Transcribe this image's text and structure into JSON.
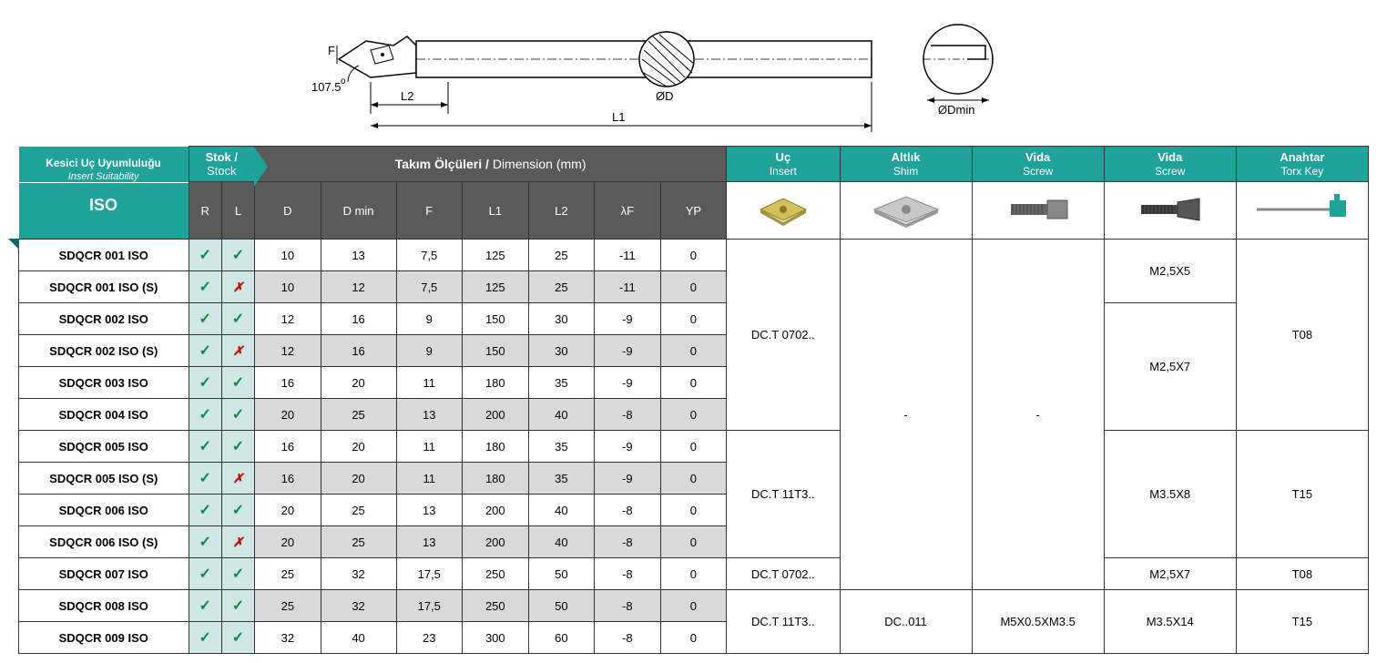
{
  "diagram": {
    "angle_label": "107.5",
    "degree": "o",
    "F": "F",
    "L2": "L2",
    "L1": "L1",
    "D": "ØD",
    "Dmin": "ØDmin"
  },
  "headers": {
    "iso_title": "Kesici Uç Uyumluluğu",
    "iso_sub": "Insert Suitability",
    "iso_label": "ISO",
    "stock": "Stok / ",
    "stock_en": "Stock",
    "dim": "Takım Ölçüleri / ",
    "dim_en": "Dimension (mm)",
    "R": "R",
    "L": "L",
    "D": "D",
    "Dmin": "D min",
    "F": "F",
    "L1": "L1",
    "L2": "L2",
    "lF": "λF",
    "YP": "YP",
    "insert": "Uç",
    "insert_en": "Insert",
    "shim": "Altlık",
    "shim_en": "Shim",
    "screw1": "Vida",
    "screw1_en": "Screw",
    "screw2": "Vida",
    "screw2_en": "Screw",
    "key": "Anahtar",
    "key_en": "Torx Key"
  },
  "rows": [
    {
      "iso": "SDQCR 001 ISO",
      "r": "✓",
      "l": "✓",
      "d": "10",
      "dmin": "13",
      "f": "7,5",
      "l1": "125",
      "l2": "25",
      "lf": "-11",
      "yp": "0",
      "alt": false
    },
    {
      "iso": "SDQCR 001 ISO (S)",
      "r": "✓",
      "l": "✗",
      "d": "10",
      "dmin": "12",
      "f": "7,5",
      "l1": "125",
      "l2": "25",
      "lf": "-11",
      "yp": "0",
      "alt": true
    },
    {
      "iso": "SDQCR 002 ISO",
      "r": "✓",
      "l": "✓",
      "d": "12",
      "dmin": "16",
      "f": "9",
      "l1": "150",
      "l2": "30",
      "lf": "-9",
      "yp": "0",
      "alt": false
    },
    {
      "iso": "SDQCR 002 ISO (S)",
      "r": "✓",
      "l": "✗",
      "d": "12",
      "dmin": "16",
      "f": "9",
      "l1": "150",
      "l2": "30",
      "lf": "-9",
      "yp": "0",
      "alt": true
    },
    {
      "iso": "SDQCR 003 ISO",
      "r": "✓",
      "l": "✓",
      "d": "16",
      "dmin": "20",
      "f": "11",
      "l1": "180",
      "l2": "35",
      "lf": "-9",
      "yp": "0",
      "alt": false
    },
    {
      "iso": "SDQCR 004 ISO",
      "r": "✓",
      "l": "✓",
      "d": "20",
      "dmin": "25",
      "f": "13",
      "l1": "200",
      "l2": "40",
      "lf": "-8",
      "yp": "0",
      "alt": true
    },
    {
      "iso": "SDQCR 005 ISO",
      "r": "✓",
      "l": "✓",
      "d": "16",
      "dmin": "20",
      "f": "11",
      "l1": "180",
      "l2": "35",
      "lf": "-9",
      "yp": "0",
      "alt": false
    },
    {
      "iso": "SDQCR 005 ISO (S)",
      "r": "✓",
      "l": "✗",
      "d": "16",
      "dmin": "20",
      "f": "11",
      "l1": "180",
      "l2": "35",
      "lf": "-9",
      "yp": "0",
      "alt": true
    },
    {
      "iso": "SDQCR 006 ISO",
      "r": "✓",
      "l": "✓",
      "d": "20",
      "dmin": "25",
      "f": "13",
      "l1": "200",
      "l2": "40",
      "lf": "-8",
      "yp": "0",
      "alt": false
    },
    {
      "iso": "SDQCR 006 ISO (S)",
      "r": "✓",
      "l": "✗",
      "d": "20",
      "dmin": "25",
      "f": "13",
      "l1": "200",
      "l2": "40",
      "lf": "-8",
      "yp": "0",
      "alt": true
    },
    {
      "iso": "SDQCR 007 ISO",
      "r": "✓",
      "l": "✓",
      "d": "25",
      "dmin": "32",
      "f": "17,5",
      "l1": "250",
      "l2": "50",
      "lf": "-8",
      "yp": "0",
      "alt": false
    },
    {
      "iso": "SDQCR 008 ISO",
      "r": "✓",
      "l": "✓",
      "d": "25",
      "dmin": "32",
      "f": "17,5",
      "l1": "250",
      "l2": "50",
      "lf": "-8",
      "yp": "0",
      "alt": true
    },
    {
      "iso": "SDQCR 009 ISO",
      "r": "✓",
      "l": "✓",
      "d": "32",
      "dmin": "40",
      "f": "23",
      "l1": "300",
      "l2": "60",
      "lf": "-8",
      "yp": "0",
      "alt": false
    }
  ],
  "merges": {
    "insert": [
      {
        "span": 6,
        "text": "DC.T 0702.."
      },
      {
        "span": 4,
        "text": "DC.T 11T3.."
      },
      {
        "span": 1,
        "text": "DC.T 0702.."
      },
      {
        "span": 2,
        "text": "DC.T 11T3.."
      }
    ],
    "shim": [
      {
        "span": 11,
        "text": "-"
      },
      {
        "span": 2,
        "text": "DC..011"
      }
    ],
    "screw1": [
      {
        "span": 11,
        "text": "-"
      },
      {
        "span": 2,
        "text": "M5X0.5XM3.5"
      }
    ],
    "screw2": [
      {
        "span": 2,
        "text": "M2,5X5"
      },
      {
        "span": 4,
        "text": "M2,5X7"
      },
      {
        "span": 4,
        "text": "M3.5X8"
      },
      {
        "span": 1,
        "text": "M2,5X7"
      },
      {
        "span": 2,
        "text": "M3.5X14"
      }
    ],
    "key": [
      {
        "span": 6,
        "text": "T08"
      },
      {
        "span": 4,
        "text": "T15"
      },
      {
        "span": 1,
        "text": "T08"
      },
      {
        "span": 2,
        "text": "T15"
      }
    ]
  },
  "colors": {
    "teal": "#1ea29a",
    "darkgray": "#5a5a5a",
    "stockbg": "#cfe8e6",
    "altbg": "#d9d9d9"
  },
  "colwidths": {
    "iso": 180,
    "r": 35,
    "l": 35,
    "d": 70,
    "dmin": 80,
    "f": 70,
    "l1": 70,
    "l2": 70,
    "lf": 70,
    "yp": 70,
    "insert": 120,
    "shim": 140,
    "screw1": 140,
    "screw2": 140,
    "key": 140
  }
}
